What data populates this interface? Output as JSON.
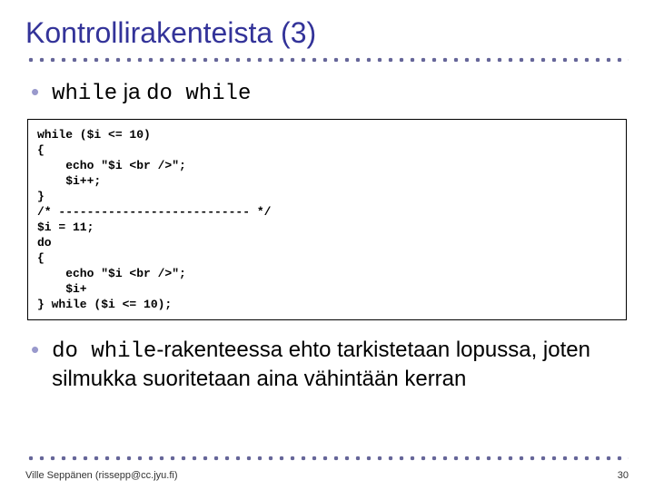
{
  "title": "Kontrollirakenteista (3)",
  "bullet1": {
    "prefix_mono": "while",
    "mid": " ja ",
    "suffix_mono": "do while"
  },
  "code_lines": [
    "while ($i <= 10)",
    "{",
    "    echo \"$i <br />\";",
    "    $i++;",
    "}",
    "/* --------------------------- */",
    "$i = 11;",
    "do",
    "{",
    "    echo \"$i <br />\";",
    "    $i+",
    "} while ($i <= 10);"
  ],
  "bullet2": {
    "mono": "do while",
    "rest": "-rakenteessa ehto tarkistetaan lopussa, joten silmukka suoritetaan aina vähintään kerran"
  },
  "footer": {
    "author": "Ville Seppänen (rissepp@cc.jyu.fi)",
    "page": "30"
  },
  "colors": {
    "title": "#333399",
    "bullet_dot": "#9999cc",
    "dot_rule": "#666699",
    "text": "#000000",
    "background": "#ffffff"
  },
  "fonts": {
    "title_size": 32,
    "bullet_size": 24,
    "code_size": 13,
    "footer_size": 11
  }
}
